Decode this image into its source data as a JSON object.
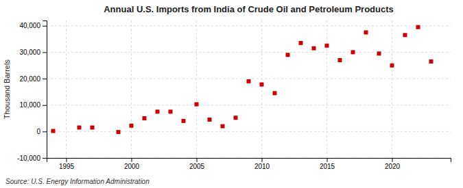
{
  "chart_data": {
    "type": "scatter",
    "title": "Annual U.S. Imports from India of Crude Oil and Petroleum Products",
    "ylabel": "Thousand Barrels",
    "annotations": [
      "Source: U.S. Energy Information Administration"
    ],
    "x": [
      1994,
      1996,
      1997,
      1999,
      2000,
      2001,
      2002,
      2003,
      2004,
      2005,
      2006,
      2007,
      2008,
      2009,
      2010,
      2011,
      2012,
      2013,
      2014,
      2015,
      2016,
      2017,
      2018,
      2019,
      2020,
      2021,
      2022,
      2023
    ],
    "values": [
      200,
      1500,
      1500,
      -200,
      2200,
      5000,
      7500,
      7500,
      4000,
      10300,
      4500,
      2000,
      5200,
      19000,
      17800,
      14500,
      29000,
      33500,
      31500,
      32500,
      27000,
      30000,
      37500,
      29500,
      25000,
      36500,
      39500,
      26500
    ],
    "color": "#cc0000",
    "marker": "square",
    "xlim": [
      1993.5,
      2024.5
    ],
    "ylim": [
      -10000,
      42000
    ],
    "xticks": [
      1995,
      2000,
      2005,
      2010,
      2015,
      2020
    ],
    "yticks": [
      {
        "value": -10000,
        "label": "-10,000"
      },
      0,
      {
        "value": 10000,
        "label": "10,000"
      },
      {
        "value": 20000,
        "label": "20,000"
      },
      {
        "value": 30000,
        "label": "30,000"
      },
      {
        "value": 40000,
        "label": "40,000"
      }
    ],
    "grid": true
  }
}
